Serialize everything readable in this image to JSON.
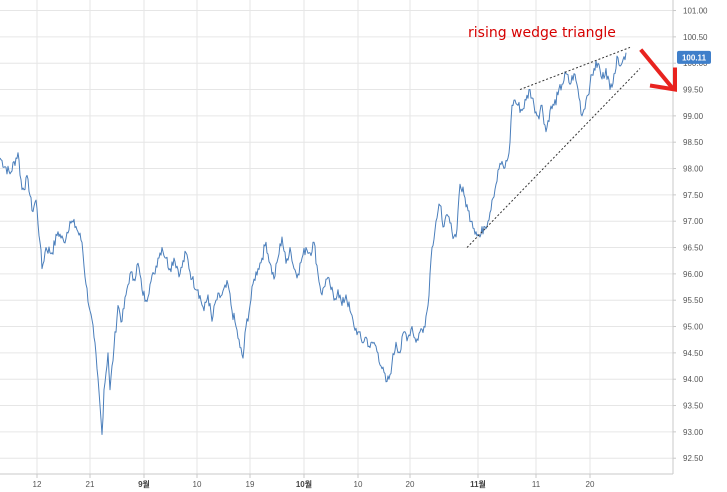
{
  "chart_data": {
    "type": "line",
    "title": "",
    "xlabel": "",
    "ylabel": "",
    "ylim": [
      92.2,
      101.2
    ],
    "x_tick_labels": [
      "12",
      "21",
      "9월",
      "10",
      "19",
      "10월",
      "10",
      "20",
      "11월",
      "11",
      "20"
    ],
    "x_tick_bold": [
      false,
      false,
      true,
      false,
      false,
      true,
      false,
      false,
      true,
      false,
      false
    ],
    "y_ticks": [
      92.5,
      93.0,
      93.5,
      94.0,
      94.5,
      95.0,
      95.5,
      96.0,
      96.5,
      97.0,
      97.5,
      98.0,
      98.5,
      99.0,
      99.5,
      100.0,
      100.5,
      101.0
    ],
    "y_tick_labels": [
      "92.50",
      "93.00",
      "93.50",
      "94.00",
      "94.50",
      "95.00",
      "95.50",
      "96.00",
      "96.50",
      "97.00",
      "97.50",
      "98.00",
      "98.50",
      "99.00",
      "99.50",
      "100.00",
      "100.50",
      "101.00"
    ],
    "last_price_label": "100.11",
    "last_price": 100.11,
    "annotation": "rising wedge triangle",
    "line_color": "#4a7ebb",
    "badge_color": "#3f7fca",
    "annotation_color": "#d60000",
    "arrow_color": "#e8231f",
    "series": [
      {
        "anchors": [
          [
            0,
            98.2
          ],
          [
            10,
            97.9
          ],
          [
            18,
            98.3
          ],
          [
            22,
            97.6
          ],
          [
            28,
            97.8
          ],
          [
            32,
            97.2
          ],
          [
            36,
            97.4
          ],
          [
            40,
            96.6
          ],
          [
            42,
            96.1
          ],
          [
            46,
            96.5
          ],
          [
            52,
            96.4
          ],
          [
            58,
            96.8
          ],
          [
            64,
            96.6
          ],
          [
            70,
            97.0
          ],
          [
            76,
            96.9
          ],
          [
            82,
            96.6
          ],
          [
            86,
            95.8
          ],
          [
            90,
            95.3
          ],
          [
            94,
            94.8
          ],
          [
            97,
            94.2
          ],
          [
            100,
            93.5
          ],
          [
            102,
            92.95
          ],
          [
            104,
            93.8
          ],
          [
            108,
            94.5
          ],
          [
            110,
            93.8
          ],
          [
            114,
            94.6
          ],
          [
            118,
            95.4
          ],
          [
            122,
            95.1
          ],
          [
            126,
            95.6
          ],
          [
            130,
            96.0
          ],
          [
            134,
            95.9
          ],
          [
            138,
            96.2
          ],
          [
            142,
            95.7
          ],
          [
            146,
            95.5
          ],
          [
            150,
            95.8
          ],
          [
            154,
            96.0
          ],
          [
            158,
            96.3
          ],
          [
            162,
            96.5
          ],
          [
            166,
            96.3
          ],
          [
            170,
            96.1
          ],
          [
            174,
            96.3
          ],
          [
            180,
            96.0
          ],
          [
            186,
            96.4
          ],
          [
            192,
            95.9
          ],
          [
            198,
            95.7
          ],
          [
            204,
            95.3
          ],
          [
            208,
            95.6
          ],
          [
            212,
            95.1
          ],
          [
            216,
            95.5
          ],
          [
            222,
            95.6
          ],
          [
            228,
            95.8
          ],
          [
            232,
            95.3
          ],
          [
            236,
            95.0
          ],
          [
            240,
            94.6
          ],
          [
            243,
            94.4
          ],
          [
            246,
            95.0
          ],
          [
            250,
            95.4
          ],
          [
            254,
            95.9
          ],
          [
            258,
            96.1
          ],
          [
            262,
            96.3
          ],
          [
            266,
            96.6
          ],
          [
            270,
            96.2
          ],
          [
            274,
            95.9
          ],
          [
            278,
            96.3
          ],
          [
            282,
            96.7
          ],
          [
            286,
            96.2
          ],
          [
            290,
            96.5
          ],
          [
            294,
            96.1
          ],
          [
            298,
            96.0
          ],
          [
            302,
            96.3
          ],
          [
            306,
            96.5
          ],
          [
            310,
            96.4
          ],
          [
            314,
            96.6
          ],
          [
            318,
            96.0
          ],
          [
            322,
            95.6
          ],
          [
            326,
            95.9
          ],
          [
            330,
            95.8
          ],
          [
            334,
            95.5
          ],
          [
            338,
            95.7
          ],
          [
            342,
            95.4
          ],
          [
            346,
            95.6
          ],
          [
            350,
            95.3
          ],
          [
            354,
            95.0
          ],
          [
            358,
            94.9
          ],
          [
            362,
            94.7
          ],
          [
            366,
            94.8
          ],
          [
            370,
            94.6
          ],
          [
            374,
            94.7
          ],
          [
            378,
            94.5
          ],
          [
            382,
            94.2
          ],
          [
            386,
            93.95
          ],
          [
            389,
            94.0
          ],
          [
            392,
            94.3
          ],
          [
            396,
            94.7
          ],
          [
            400,
            94.5
          ],
          [
            404,
            94.9
          ],
          [
            408,
            94.8
          ],
          [
            412,
            95.0
          ],
          [
            416,
            94.7
          ],
          [
            420,
            94.9
          ],
          [
            424,
            95.0
          ],
          [
            428,
            95.4
          ],
          [
            430,
            96.0
          ],
          [
            432,
            96.5
          ],
          [
            436,
            97.0
          ],
          [
            440,
            97.3
          ],
          [
            444,
            96.9
          ],
          [
            448,
            97.1
          ],
          [
            452,
            96.8
          ],
          [
            456,
            96.7
          ],
          [
            458,
            97.2
          ],
          [
            460,
            97.7
          ],
          [
            464,
            97.5
          ],
          [
            468,
            97.2
          ],
          [
            472,
            97.0
          ],
          [
            476,
            96.8
          ],
          [
            480,
            96.7
          ],
          [
            484,
            96.9
          ],
          [
            488,
            97.0
          ],
          [
            492,
            97.4
          ],
          [
            496,
            97.7
          ],
          [
            500,
            98.1
          ],
          [
            504,
            98.0
          ],
          [
            508,
            98.2
          ],
          [
            510,
            98.5
          ],
          [
            512,
            99.2
          ],
          [
            514,
            99.3
          ],
          [
            518,
            99.2
          ],
          [
            522,
            99.1
          ],
          [
            526,
            99.3
          ],
          [
            530,
            99.5
          ],
          [
            534,
            99.2
          ],
          [
            538,
            99.0
          ],
          [
            542,
            99.2
          ],
          [
            546,
            98.7
          ],
          [
            550,
            99.1
          ],
          [
            554,
            99.2
          ],
          [
            558,
            99.4
          ],
          [
            562,
            99.6
          ],
          [
            566,
            99.8
          ],
          [
            570,
            99.6
          ],
          [
            574,
            99.8
          ],
          [
            578,
            99.5
          ],
          [
            582,
            99.0
          ],
          [
            586,
            99.3
          ],
          [
            590,
            99.6
          ],
          [
            594,
            99.9
          ],
          [
            598,
            100.0
          ],
          [
            602,
            99.7
          ],
          [
            606,
            99.9
          ],
          [
            610,
            99.5
          ],
          [
            614,
            99.8
          ],
          [
            618,
            100.1
          ],
          [
            622,
            100.0
          ],
          [
            626,
            100.2
          ]
        ]
      }
    ],
    "wedge_upper": [
      [
        520,
        99.5
      ],
      [
        630,
        100.3
      ]
    ],
    "wedge_lower": [
      [
        467,
        96.5
      ],
      [
        640,
        99.9
      ]
    ],
    "arrow": [
      [
        642,
        100.0
      ],
      [
        672,
        99.5
      ]
    ]
  }
}
